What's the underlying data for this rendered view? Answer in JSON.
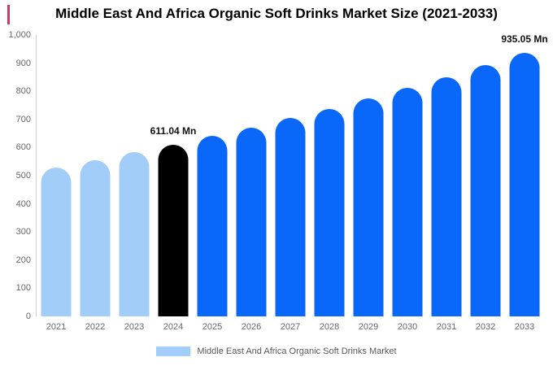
{
  "title": "Middle East And Africa Organic Soft Drinks Market Size (2021-2033)",
  "colors": {
    "historical_bar": "#A3CDF9",
    "base_year_bar": "#000000",
    "forecast_bar": "#0968FA",
    "axis_line": "#CFCFCF",
    "tick_label": "#666666",
    "legend_text": "#595959",
    "annotation_text": "#111111",
    "artifact_mark": "#D6336C"
  },
  "chart_data": {
    "type": "bar",
    "title": "Middle East And Africa Organic Soft Drinks Market Size (2021-2033)",
    "unit": "Mn",
    "categories": [
      "2021",
      "2022",
      "2023",
      "2024",
      "2025",
      "2026",
      "2027",
      "2028",
      "2029",
      "2030",
      "2031",
      "2032",
      "2033"
    ],
    "values": [
      530.1,
      555.9,
      582.9,
      611.04,
      640.6,
      671.7,
      704.2,
      738.3,
      774.0,
      811.5,
      850.8,
      892.0,
      935.05
    ],
    "bar_colors": [
      "#A3CDF9",
      "#A3CDF9",
      "#A3CDF9",
      "#000000",
      "#0968FA",
      "#0968FA",
      "#0968FA",
      "#0968FA",
      "#0968FA",
      "#0968FA",
      "#0968FA",
      "#0968FA",
      "#0968FA"
    ],
    "annotations": [
      {
        "index": 3,
        "text": "611.04 Mn"
      },
      {
        "index": 12,
        "text": "935.05 Mn"
      }
    ],
    "ylim": [
      0,
      1000
    ],
    "yticks": [
      {
        "value": 1000,
        "label": "1,000"
      },
      {
        "value": 900,
        "label": "900"
      },
      {
        "value": 800,
        "label": "800"
      },
      {
        "value": 700,
        "label": "700"
      },
      {
        "value": 600,
        "label": "600"
      },
      {
        "value": 500,
        "label": "500"
      },
      {
        "value": 400,
        "label": "400"
      },
      {
        "value": 300,
        "label": "300"
      },
      {
        "value": 200,
        "label": "200"
      },
      {
        "value": 100,
        "label": "100"
      },
      {
        "value": 0,
        "label": "0"
      }
    ],
    "grid": "none",
    "legend": {
      "position": "bottom",
      "items": [
        {
          "label": "Middle East And Africa Organic Soft Drinks Market",
          "color": "#A3CDF9"
        }
      ]
    }
  }
}
